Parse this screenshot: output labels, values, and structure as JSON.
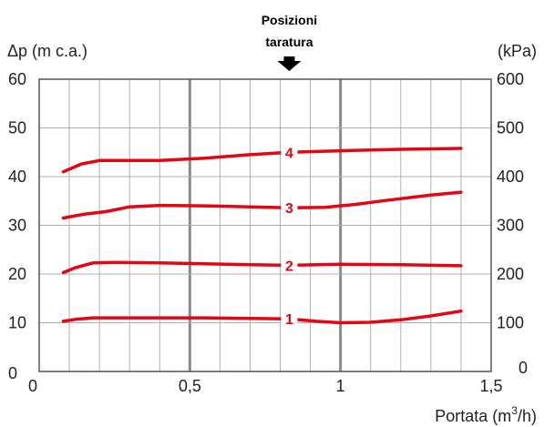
{
  "chart_data": {
    "type": "line",
    "title": "",
    "xlabel": "Portata (m3/h)",
    "xlabel_main": "Portata (m",
    "xlabel_sup": "3",
    "xlabel_end": "/h)",
    "ylabel_left": "Δp (m c.a.)",
    "ylabel_right": "(kPa)",
    "xlim": [
      0,
      1.5
    ],
    "ylim_left": [
      0,
      60
    ],
    "ylim_right": [
      0,
      600
    ],
    "x_ticks": [
      0,
      0.5,
      1,
      1.5
    ],
    "x_tick_labels": [
      "0",
      "0,5",
      "1",
      "1,5"
    ],
    "y_left_ticks": [
      0,
      10,
      20,
      30,
      40,
      50,
      60
    ],
    "y_right_ticks": [
      0,
      100,
      200,
      300,
      400,
      500,
      600
    ],
    "grid": true,
    "annotation": {
      "lines": [
        "Posizioni",
        "taratura"
      ],
      "x": 0.83
    },
    "colors": {
      "curve": "#e30613",
      "grid": "#b0b0b0",
      "major_grid": "#8a8a8a",
      "frame": "#555555",
      "arrow": "#000000"
    },
    "series": [
      {
        "label": "1",
        "label_x": 0.83,
        "x": [
          0.08,
          0.12,
          0.18,
          0.25,
          0.4,
          0.55,
          0.7,
          0.83,
          0.92,
          1.0,
          1.1,
          1.2,
          1.3,
          1.4
        ],
        "y": [
          10.3,
          10.7,
          11.0,
          11.0,
          11.0,
          11.0,
          10.9,
          10.8,
          10.3,
          10.0,
          10.1,
          10.6,
          11.4,
          12.4
        ]
      },
      {
        "label": "2",
        "label_x": 0.83,
        "x": [
          0.08,
          0.12,
          0.18,
          0.25,
          0.4,
          0.55,
          0.7,
          0.83,
          1.0,
          1.2,
          1.4
        ],
        "y": [
          20.3,
          21.3,
          22.3,
          22.4,
          22.3,
          22.1,
          21.9,
          21.8,
          22.0,
          21.9,
          21.7
        ]
      },
      {
        "label": "3",
        "label_x": 0.83,
        "x": [
          0.08,
          0.15,
          0.22,
          0.3,
          0.4,
          0.55,
          0.7,
          0.83,
          0.95,
          1.05,
          1.15,
          1.3,
          1.4
        ],
        "y": [
          31.5,
          32.3,
          32.8,
          33.8,
          34.1,
          34.0,
          33.8,
          33.6,
          33.7,
          34.3,
          35.1,
          36.2,
          36.8
        ]
      },
      {
        "label": "4",
        "label_x": 0.83,
        "x": [
          0.08,
          0.14,
          0.2,
          0.3,
          0.4,
          0.55,
          0.7,
          0.83,
          1.0,
          1.2,
          1.4
        ],
        "y": [
          41.0,
          42.6,
          43.3,
          43.3,
          43.3,
          43.8,
          44.5,
          45.0,
          45.3,
          45.6,
          45.8
        ]
      }
    ]
  }
}
